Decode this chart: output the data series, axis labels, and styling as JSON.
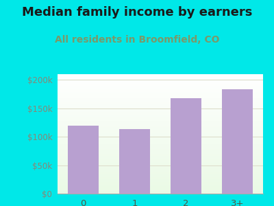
{
  "categories": [
    "0",
    "1",
    "2",
    "3+"
  ],
  "values": [
    120000,
    113000,
    168000,
    183000
  ],
  "bar_color": "#b8a0d0",
  "title": "Median family income by earners",
  "subtitle": "All residents in Broomfield, CO",
  "title_color": "#1a1a1a",
  "subtitle_color": "#7a9a6a",
  "background_color": "#00e8e8",
  "ytick_labels": [
    "$0",
    "$50k",
    "$100k",
    "$150k",
    "$200k"
  ],
  "ytick_values": [
    0,
    50000,
    100000,
    150000,
    200000
  ],
  "ylim": [
    0,
    210000
  ],
  "ytick_color": "#888877",
  "xtick_color": "#555544",
  "grid_color": "#ddddcc",
  "title_fontsize": 13,
  "subtitle_fontsize": 10
}
